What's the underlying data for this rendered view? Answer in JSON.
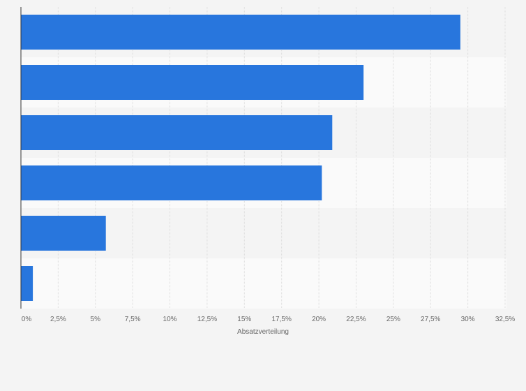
{
  "chart_data": {
    "type": "bar",
    "orientation": "horizontal",
    "categories": [
      "",
      "",
      "",
      "",
      "",
      ""
    ],
    "values": [
      29.5,
      23.0,
      20.9,
      20.2,
      5.7,
      0.8
    ],
    "title": "",
    "xlabel": "Absatzverteilung",
    "ylabel": "",
    "xlim": [
      0,
      32.5
    ],
    "x_ticks": [
      0,
      2.5,
      5,
      7.5,
      10,
      12.5,
      15,
      17.5,
      20,
      22.5,
      25,
      27.5,
      30,
      32.5
    ],
    "x_tick_labels": [
      "0%",
      "2,5%",
      "5%",
      "7,5%",
      "10%",
      "12,5%",
      "15%",
      "17,5%",
      "20%",
      "22,5%",
      "25%",
      "27,5%",
      "30%",
      "32,5%"
    ],
    "grid": true,
    "legend": "none",
    "bar_color": "#2876dd",
    "band_colors": [
      "#f4f4f4",
      "#fafafa"
    ],
    "grid_color": "#dcdcdc",
    "axis_color": "#333333"
  }
}
